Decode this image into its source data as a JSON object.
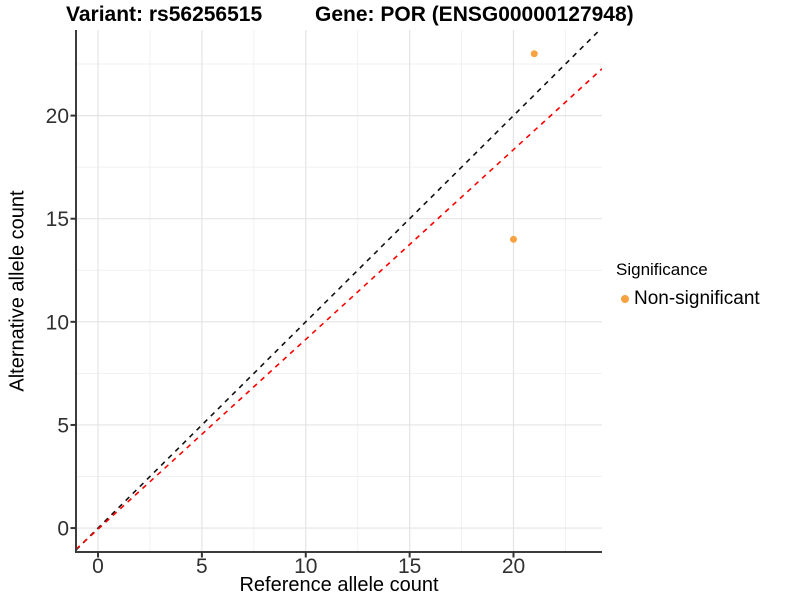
{
  "chart_data": {
    "type": "scatter",
    "title_left": "Variant: rs56256515",
    "title_right": "Gene: POR (ENSG00000127948)",
    "xlabel": "Reference allele count",
    "ylabel": "Alternative allele count",
    "xlim": [
      -1.06,
      24.26
    ],
    "ylim": [
      -1.16,
      24.15
    ],
    "x_major_ticks": [
      0,
      5,
      10,
      15,
      20
    ],
    "y_major_ticks": [
      0,
      5,
      10,
      15,
      20
    ],
    "x_minor_ticks": [
      2.5,
      7.5,
      12.5,
      17.5,
      22.5
    ],
    "y_minor_ticks": [
      2.5,
      7.5,
      12.5,
      17.5,
      22.5
    ],
    "grid": true,
    "points": [
      {
        "x": 21,
        "y": 23,
        "series": "Non-significant"
      },
      {
        "x": 20,
        "y": 14,
        "series": "Non-significant"
      }
    ],
    "lines": [
      {
        "name": "identity-line",
        "slope": 1,
        "intercept": 0,
        "style": "dashed",
        "color": "#111111"
      },
      {
        "name": "expected-ratio-line",
        "slope": 0.92,
        "intercept": -0.05,
        "style": "dashed",
        "color": "#FF0000"
      }
    ],
    "legend": {
      "title": "Significance",
      "position": "right",
      "entries": [
        {
          "label": "Non-significant",
          "color": "#F9A242"
        }
      ]
    },
    "colors": {
      "point": "#F9A242",
      "grid_major": "#E4E4E4",
      "grid_minor": "#F1F1F1",
      "axis_line": "#3C3C3C",
      "tick_mark": "#333333",
      "tick_text": "#303030"
    }
  }
}
